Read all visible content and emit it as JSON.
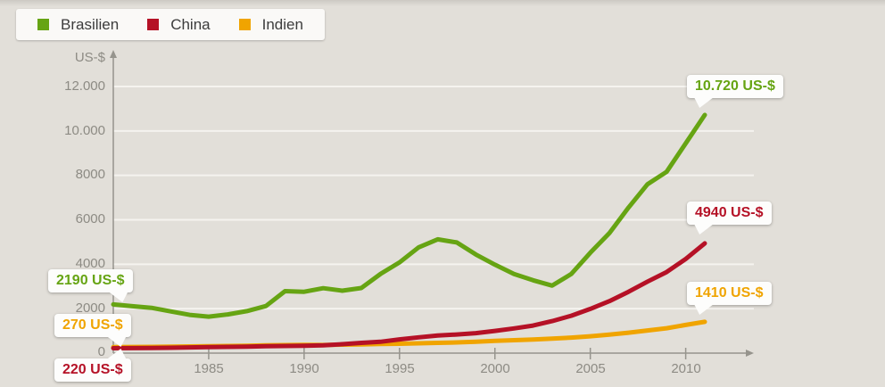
{
  "legend": {
    "items": [
      {
        "label": "Brasilien",
        "color": "#66a413"
      },
      {
        "label": "China",
        "color": "#b51126"
      },
      {
        "label": "Indien",
        "color": "#f0a400"
      }
    ]
  },
  "axes": {
    "y_title": "US-$",
    "y_tick_labels": [
      "12.000",
      "10.000",
      "8000",
      "6000",
      "4000",
      "2000",
      "0"
    ],
    "x_tick_labels": [
      "1985",
      "1990",
      "1995",
      "2000",
      "2005",
      "2010"
    ]
  },
  "annotations": [
    {
      "series": "Brasilien",
      "position": "end",
      "label": "10.720 US-$",
      "color": "#66a413"
    },
    {
      "series": "China",
      "position": "end",
      "label": "4940 US-$",
      "color": "#b51126"
    },
    {
      "series": "Indien",
      "position": "end",
      "label": "1410 US-$",
      "color": "#f0a400"
    },
    {
      "series": "Brasilien",
      "position": "start",
      "label": "2190 US-$",
      "color": "#66a413"
    },
    {
      "series": "Indien",
      "position": "start",
      "label": "270 US-$",
      "color": "#f0a400"
    },
    {
      "series": "China",
      "position": "start",
      "label": "220 US-$",
      "color": "#b51126"
    }
  ],
  "chart_data": {
    "type": "line",
    "title": "",
    "xlabel": "",
    "ylabel": "US-$",
    "xlim": [
      1980,
      2011
    ],
    "ylim": [
      0,
      13000
    ],
    "grid": "horizontal-only",
    "grid_values": [
      2000,
      4000,
      6000,
      8000,
      10000,
      12000
    ],
    "y_tick_values": [
      12000,
      10000,
      8000,
      6000,
      4000,
      2000,
      0
    ],
    "x_tick_values": [
      1985,
      1990,
      1995,
      2000,
      2005,
      2010
    ],
    "legend_position": "top-left",
    "x": [
      1980,
      1981,
      1982,
      1983,
      1984,
      1985,
      1986,
      1987,
      1988,
      1989,
      1990,
      1991,
      1992,
      1993,
      1994,
      1995,
      1996,
      1997,
      1998,
      1999,
      2000,
      2001,
      2002,
      2003,
      2004,
      2005,
      2006,
      2007,
      2008,
      2009,
      2010,
      2011
    ],
    "series": [
      {
        "name": "Brasilien",
        "color": "#66a413",
        "values": [
          2190,
          2110,
          2040,
          1880,
          1720,
          1640,
          1740,
          1890,
          2120,
          2790,
          2760,
          2920,
          2810,
          2930,
          3560,
          4080,
          4760,
          5120,
          4980,
          4440,
          3980,
          3560,
          3280,
          3040,
          3560,
          4520,
          5400,
          6550,
          7600,
          8160,
          9440,
          10720
        ]
      },
      {
        "name": "China",
        "color": "#b51126",
        "values": [
          220,
          225,
          230,
          240,
          255,
          270,
          280,
          290,
          310,
          320,
          330,
          350,
          400,
          460,
          510,
          620,
          710,
          790,
          840,
          900,
          1000,
          1110,
          1240,
          1440,
          1680,
          1990,
          2340,
          2760,
          3220,
          3650,
          4240,
          4940
        ]
      },
      {
        "name": "Indien",
        "color": "#f0a400",
        "values": [
          270,
          275,
          280,
          290,
          300,
          310,
          320,
          335,
          350,
          360,
          370,
          365,
          380,
          390,
          410,
          420,
          440,
          460,
          480,
          510,
          550,
          580,
          610,
          650,
          700,
          760,
          830,
          920,
          1020,
          1120,
          1270,
          1410
        ]
      }
    ],
    "start_value_labels": {
      "Brasilien": "2190 US-$",
      "China": "220 US-$",
      "Indien": "270 US-$"
    },
    "end_value_labels": {
      "Brasilien": "10.720 US-$",
      "China": "4940 US-$",
      "Indien": "1410 US-$"
    }
  },
  "colors": {
    "background": "#e2dfd9",
    "gridline": "#f5f3ef",
    "axis": "#96948d",
    "axis_text": "#8d8b84",
    "legend_bg": "#faf9f7",
    "callout_bg": "#fdfdfc"
  }
}
